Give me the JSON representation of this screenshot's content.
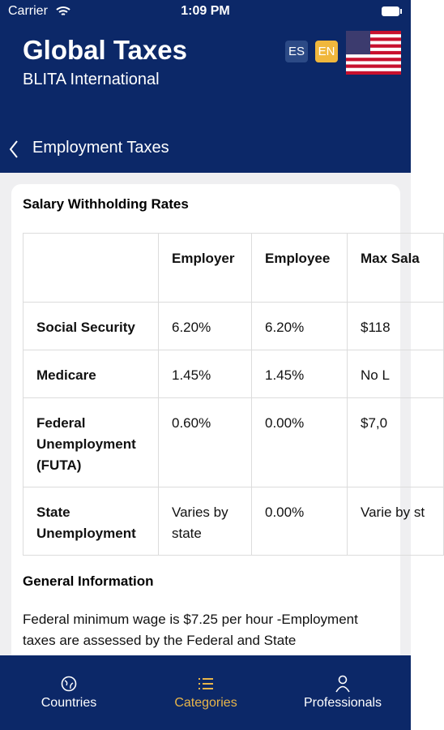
{
  "status_bar": {
    "carrier": "Carrier",
    "time": "1:09 PM"
  },
  "header": {
    "title": "Global Taxes",
    "subtitle": "BLITA International",
    "languages": [
      "ES",
      "EN"
    ]
  },
  "nav": {
    "title": "Employment Taxes"
  },
  "card": {
    "title": "Salary Withholding Rates",
    "table": {
      "header": [
        "Employer",
        "Employee",
        "Max Sala"
      ],
      "rows": [
        [
          "Social Security",
          "6.20%",
          "6.20%",
          "$118"
        ],
        [
          "Medicare",
          "1.45%",
          "1.45%",
          "No L"
        ],
        [
          "Federal Unemployment (FUTA)",
          "0.60%",
          "0.00%",
          "$7,0"
        ],
        [
          "State Unemployment",
          "Varies by state",
          "0.00%",
          "Varie by st"
        ]
      ]
    },
    "section_title": "General Information",
    "paragraph": "Federal minimum wage is $7.25 per hour -Employment taxes are assessed by the Federal and State"
  },
  "tabs": [
    "Countries",
    "Categories",
    "Professionals"
  ]
}
